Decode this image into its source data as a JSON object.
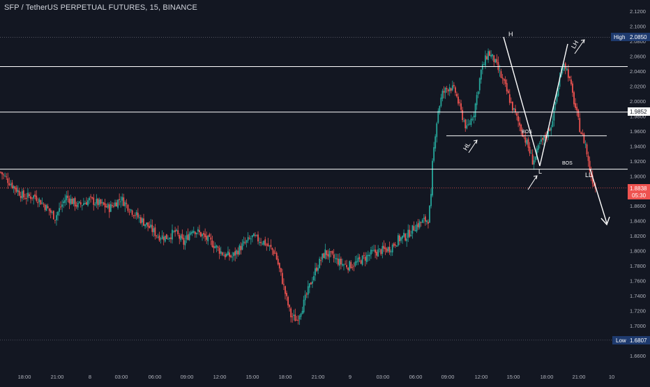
{
  "header": {
    "title": "SFP / TetherUS PERPETUAL FUTURES, 15, BINANCE"
  },
  "colors": {
    "background": "#131722",
    "up": "#26a69a",
    "down": "#ef5350",
    "dotted": "#5d606b",
    "annotation": "#ffffff",
    "high_label_bg": "#1e3a6e",
    "last_price_bg": "#ef5350"
  },
  "chart_data": {
    "type": "candlestick",
    "ylim": [
      1.645,
      2.13
    ],
    "y_ticks": [
      "2.1200",
      "2.1000",
      "2.0800",
      "2.0600",
      "2.0400",
      "2.0200",
      "2.0000",
      "1.9800",
      "1.9600",
      "1.9400",
      "1.9200",
      "1.9000",
      "1.8800",
      "1.8600",
      "1.8400",
      "1.8200",
      "1.8000",
      "1.7800",
      "1.7600",
      "1.7400",
      "1.7200",
      "1.7000",
      "1.6800",
      "1.6600"
    ],
    "x_ticks": [
      "18:00",
      "21:00",
      "8",
      "03:00",
      "06:00",
      "09:00",
      "12:00",
      "15:00",
      "18:00",
      "21:00",
      "9",
      "03:00",
      "06:00",
      "09:00",
      "12:00",
      "15:00",
      "18:00",
      "21:00",
      "10"
    ],
    "markers": {
      "high": {
        "label": "High",
        "value": "2.0850"
      },
      "low": {
        "label": "Low",
        "value": "1.6807"
      },
      "level": {
        "value": "1.9852"
      },
      "last": {
        "value": "1.8838",
        "countdown": "05:30"
      }
    },
    "annotations": {
      "H": "H",
      "LH": "LH",
      "HL": "HL",
      "L": "L",
      "LL": "LL",
      "BOS1": "BOS",
      "BOS2": "BOS"
    },
    "levels": [
      2.046,
      1.9852,
      1.9535,
      1.909
    ],
    "anchors": [
      [
        0,
        1.905
      ],
      [
        8,
        1.888
      ],
      [
        16,
        1.872
      ],
      [
        24,
        1.873
      ],
      [
        30,
        1.862
      ],
      [
        38,
        1.845
      ],
      [
        46,
        1.872
      ],
      [
        54,
        1.86
      ],
      [
        62,
        1.868
      ],
      [
        70,
        1.862
      ],
      [
        76,
        1.857
      ],
      [
        84,
        1.87
      ],
      [
        90,
        1.857
      ],
      [
        96,
        1.845
      ],
      [
        102,
        1.835
      ],
      [
        110,
        1.82
      ],
      [
        116,
        1.818
      ],
      [
        122,
        1.825
      ],
      [
        128,
        1.81
      ],
      [
        134,
        1.83
      ],
      [
        140,
        1.822
      ],
      [
        148,
        1.81
      ],
      [
        156,
        1.795
      ],
      [
        162,
        1.792
      ],
      [
        168,
        1.805
      ],
      [
        176,
        1.818
      ],
      [
        184,
        1.812
      ],
      [
        192,
        1.797
      ],
      [
        197,
        1.76
      ],
      [
        200,
        1.735
      ],
      [
        203,
        1.713
      ],
      [
        207,
        1.708
      ],
      [
        212,
        1.73
      ],
      [
        217,
        1.758
      ],
      [
        221,
        1.778
      ],
      [
        227,
        1.798
      ],
      [
        233,
        1.79
      ],
      [
        238,
        1.783
      ],
      [
        243,
        1.78
      ],
      [
        248,
        1.783
      ],
      [
        254,
        1.79
      ],
      [
        260,
        1.797
      ],
      [
        266,
        1.8
      ],
      [
        272,
        1.803
      ],
      [
        278,
        1.815
      ],
      [
        284,
        1.82
      ],
      [
        290,
        1.833
      ],
      [
        296,
        1.84
      ],
      [
        299,
        1.842
      ],
      [
        301,
        1.87
      ],
      [
        302,
        1.915
      ],
      [
        304,
        1.958
      ],
      [
        306,
        1.988
      ],
      [
        309,
        2.01
      ],
      [
        314,
        2.02
      ],
      [
        318,
        2.012
      ],
      [
        322,
        1.985
      ],
      [
        326,
        1.962
      ],
      [
        331,
        1.985
      ],
      [
        336,
        2.04
      ],
      [
        341,
        2.065
      ],
      [
        345,
        2.055
      ],
      [
        349,
        2.037
      ],
      [
        353,
        2.018
      ],
      [
        357,
        1.996
      ],
      [
        361,
        1.977
      ],
      [
        365,
        1.958
      ],
      [
        369,
        1.938
      ],
      [
        372,
        1.92
      ],
      [
        374,
        1.925
      ],
      [
        377,
        1.942
      ],
      [
        381,
        1.952
      ],
      [
        385,
        1.968
      ],
      [
        388,
        1.998
      ],
      [
        391,
        2.03
      ],
      [
        394,
        2.052
      ],
      [
        397,
        2.036
      ],
      [
        400,
        2.008
      ],
      [
        403,
        1.982
      ],
      [
        405,
        1.964
      ],
      [
        407,
        1.952
      ],
      [
        409,
        1.942
      ],
      [
        411,
        1.918
      ],
      [
        413,
        1.9
      ],
      [
        415,
        1.889
      ],
      [
        416,
        1.884
      ]
    ]
  }
}
